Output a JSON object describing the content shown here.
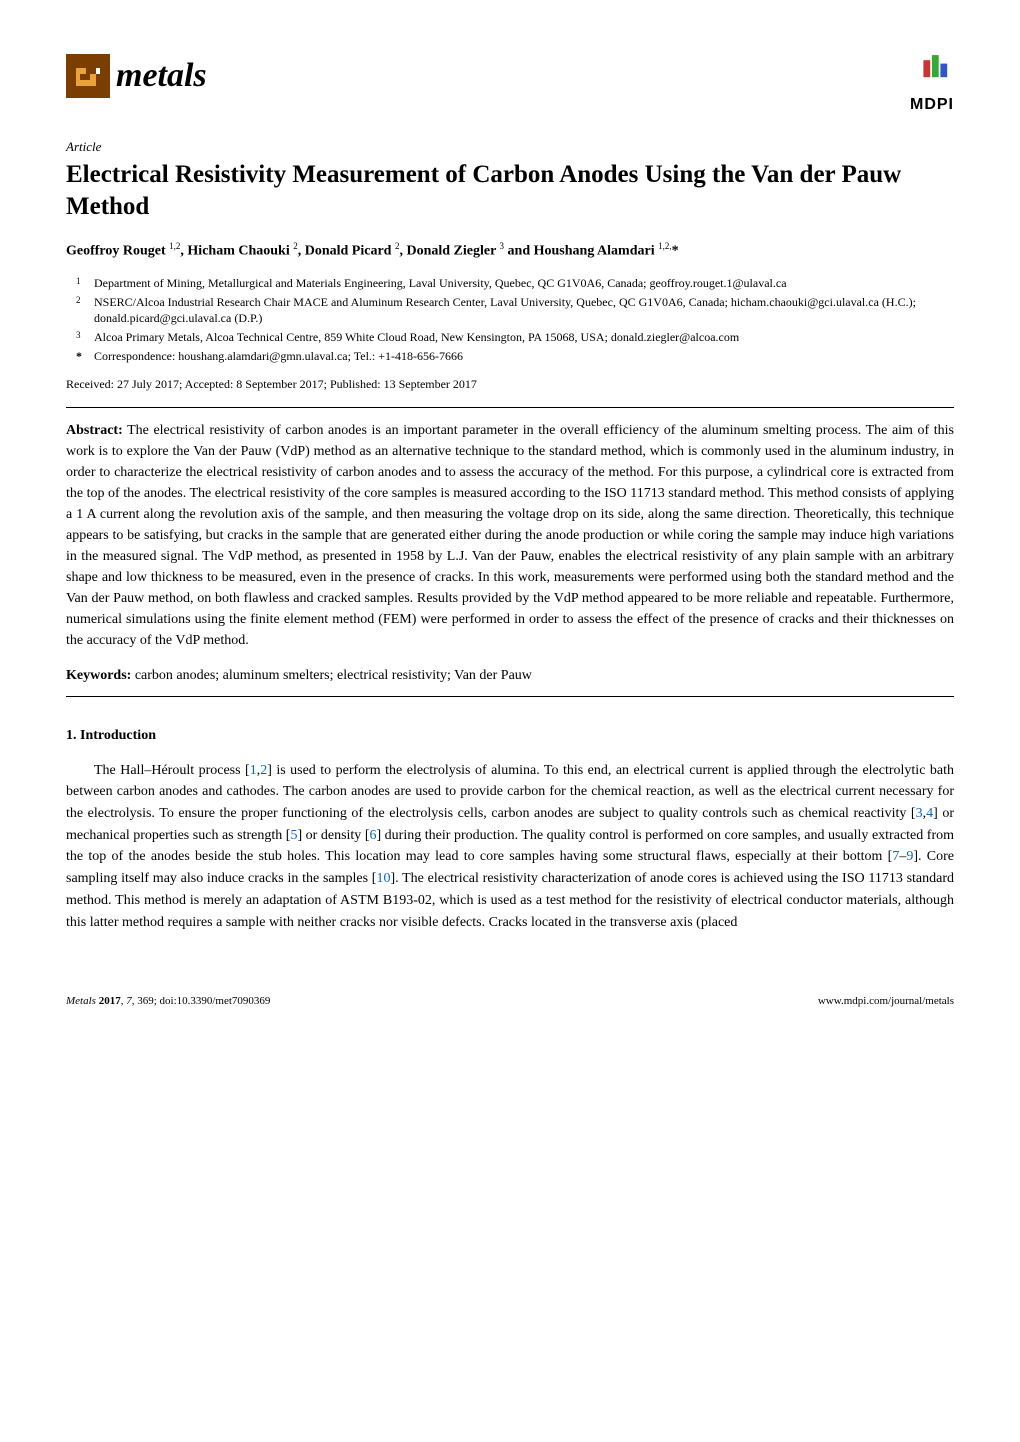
{
  "header": {
    "journal_name": "metals",
    "logo_bg": "#7a3e00",
    "publisher": "MDPI"
  },
  "article": {
    "type": "Article",
    "title": "Electrical Resistivity Measurement of Carbon Anodes Using the Van der Pauw Method",
    "authors_html": "Geoffroy Rouget <sup>1,2</sup>, Hicham Chaouki <sup>2</sup>, Donald Picard <sup>2</sup>, Donald Ziegler <sup>3</sup> and Houshang Alamdari <sup>1,2,</sup>*"
  },
  "affiliations": [
    {
      "num": "1",
      "text": "Department of Mining, Metallurgical and Materials Engineering, Laval University, Quebec, QC G1V0A6, Canada; geoffroy.rouget.1@ulaval.ca"
    },
    {
      "num": "2",
      "text": "NSERC/Alcoa Industrial Research Chair MACE and Aluminum Research Center, Laval University, Quebec, QC G1V0A6, Canada; hicham.chaouki@gci.ulaval.ca (H.C.); donald.picard@gci.ulaval.ca (D.P.)"
    },
    {
      "num": "3",
      "text": "Alcoa Primary Metals, Alcoa Technical Centre, 859 White Cloud Road, New Kensington, PA 15068, USA; donald.ziegler@alcoa.com"
    }
  ],
  "correspondence": {
    "star": "*",
    "text": "Correspondence: houshang.alamdari@gmn.ulaval.ca; Tel.: +1-418-656-7666"
  },
  "dates": "Received: 27 July 2017; Accepted: 8 September 2017; Published: 13 September 2017",
  "abstract": {
    "label": "Abstract:",
    "text": "The electrical resistivity of carbon anodes is an important parameter in the overall efficiency of the aluminum smelting process. The aim of this work is to explore the Van der Pauw (VdP) method as an alternative technique to the standard method, which is commonly used in the aluminum industry, in order to characterize the electrical resistivity of carbon anodes and to assess the accuracy of the method. For this purpose, a cylindrical core is extracted from the top of the anodes. The electrical resistivity of the core samples is measured according to the ISO 11713 standard method. This method consists of applying a 1 A current along the revolution axis of the sample, and then measuring the voltage drop on its side, along the same direction. Theoretically, this technique appears to be satisfying, but cracks in the sample that are generated either during the anode production or while coring the sample may induce high variations in the measured signal. The VdP method, as presented in 1958 by L.J. Van der Pauw, enables the electrical resistivity of any plain sample with an arbitrary shape and low thickness to be measured, even in the presence of cracks. In this work, measurements were performed using both the standard method and the Van der Pauw method, on both flawless and cracked samples. Results provided by the VdP method appeared to be more reliable and repeatable. Furthermore, numerical simulations using the finite element method (FEM) were performed in order to assess the effect of the presence of cracks and their thicknesses on the accuracy of the VdP method."
  },
  "keywords": {
    "label": "Keywords:",
    "text": "carbon anodes; aluminum smelters; electrical resistivity; Van der Pauw"
  },
  "section1": {
    "heading": "1. Introduction",
    "p1_a": "The Hall–Héroult process [",
    "c1": "1",
    "c1b": ",",
    "c2": "2",
    "p1_b": "] is used to perform the electrolysis of alumina. To this end, an electrical current is applied through the electrolytic bath between carbon anodes and cathodes. The carbon anodes are used to provide carbon for the chemical reaction, as well as the electrical current necessary for the electrolysis. To ensure the proper functioning of the electrolysis cells, carbon anodes are subject to quality controls such as chemical reactivity [",
    "c3": "3",
    "c3b": ",",
    "c4": "4",
    "p1_c": "] or mechanical properties such as strength [",
    "c5": "5",
    "p1_d": "] or density [",
    "c6": "6",
    "p1_e": "] during their production. The quality control is performed on core samples, and usually extracted from the top of the anodes beside the stub holes. This location may lead to core samples having some structural flaws, especially at their bottom [",
    "c7": "7",
    "c7b": "–",
    "c9": "9",
    "p1_f": "]. Core sampling itself may also induce cracks in the samples [",
    "c10": "10",
    "p1_g": "]. The electrical resistivity characterization of anode cores is achieved using the ISO 11713 standard method. This method is merely an adaptation of ASTM B193-02, which is used as a test method for the resistivity of electrical conductor materials, although this latter method requires a sample with neither cracks nor visible defects. Cracks located in the transverse axis (placed"
  },
  "footer": {
    "left_a": "Metals ",
    "left_b": "2017",
    "left_c": ", ",
    "left_d": "7",
    "left_e": ", 369; doi:10.3390/met7090369",
    "right": "www.mdpi.com/journal/metals"
  },
  "colors": {
    "cite": "#0066cc",
    "text": "#000000",
    "bg": "#ffffff"
  },
  "typography": {
    "body_fontsize": 14,
    "title_fontsize": 25,
    "journal_fontsize": 34,
    "footer_fontsize": 11,
    "affil_fontsize": 12
  }
}
